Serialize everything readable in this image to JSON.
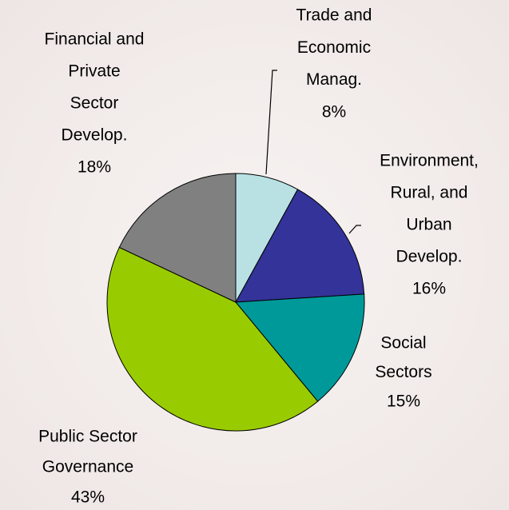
{
  "chart_data": {
    "type": "pie",
    "categories": [
      [
        "Trade and",
        "Economic",
        "Manag."
      ],
      [
        "Environment,",
        "Rural, and",
        "Urban",
        "Develop."
      ],
      [
        "Social",
        "Sectors"
      ],
      [
        "Public Sector",
        "Governance"
      ],
      [
        "Financial and",
        "Private",
        "Sector",
        "Develop."
      ]
    ],
    "values": [
      8,
      16,
      15,
      43,
      18
    ],
    "value_labels": [
      "8%",
      "16%",
      "15%",
      "43%",
      "18%"
    ],
    "colors": [
      "#b9e1e4",
      "#333399",
      "#009999",
      "#99cc00",
      "#808080"
    ]
  }
}
